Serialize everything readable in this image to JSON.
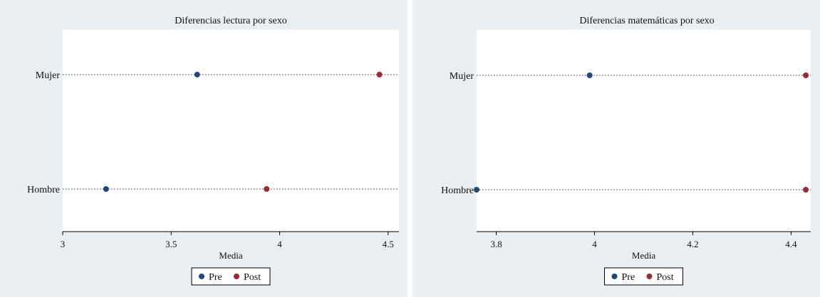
{
  "colors": {
    "outer_bg": "#e9eef3",
    "plot_bg": "#ffffff",
    "pre": "#1b4b7a",
    "post": "#9b2b2e",
    "axis": "#000000"
  },
  "legend_labels": {
    "pre": "Pre",
    "post": "Post"
  },
  "chart_data": [
    {
      "type": "scatter",
      "title": "Diferencias lectura por sexo",
      "xlabel": "Media",
      "ylabel": "",
      "xlim": [
        3,
        4.55
      ],
      "xticks": [
        3,
        3.5,
        4,
        4.5
      ],
      "categories": [
        "Mujer",
        "Hombre"
      ],
      "series": [
        {
          "name": "Pre",
          "values": [
            3.62,
            3.2
          ]
        },
        {
          "name": "Post",
          "values": [
            4.46,
            3.94
          ]
        }
      ],
      "grid": "dotted-horizontal",
      "legend": "bottom-center"
    },
    {
      "type": "scatter",
      "title": "Diferencias matemáticas por sexo",
      "xlabel": "Media",
      "ylabel": "",
      "xlim": [
        3.76,
        4.44
      ],
      "xticks": [
        3.8,
        4,
        4.2,
        4.4
      ],
      "categories": [
        "Mujer",
        "Hombre"
      ],
      "series": [
        {
          "name": "Pre",
          "values": [
            3.99,
            3.76
          ]
        },
        {
          "name": "Post",
          "values": [
            4.43,
            4.43
          ]
        }
      ],
      "grid": "dotted-horizontal",
      "legend": "bottom-center"
    }
  ]
}
